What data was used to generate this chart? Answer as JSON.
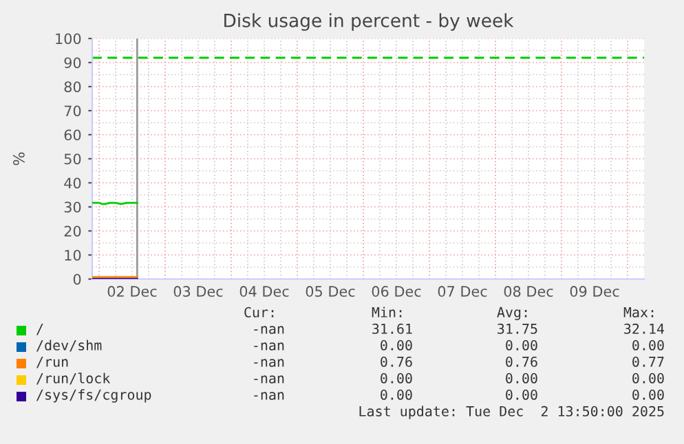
{
  "chart_data": {
    "type": "line",
    "title": "Disk usage in percent - by week",
    "ylabel": "%",
    "xlim": [
      "2025-12-01T21:30",
      "2025-12-10T06:00"
    ],
    "xticks": [
      {
        "value": "2025-12-02T12:00",
        "label": "02 Dec"
      },
      {
        "value": "2025-12-03T12:00",
        "label": "03 Dec"
      },
      {
        "value": "2025-12-04T12:00",
        "label": "04 Dec"
      },
      {
        "value": "2025-12-05T12:00",
        "label": "05 Dec"
      },
      {
        "value": "2025-12-06T12:00",
        "label": "06 Dec"
      },
      {
        "value": "2025-12-07T12:00",
        "label": "07 Dec"
      },
      {
        "value": "2025-12-08T12:00",
        "label": "08 Dec"
      },
      {
        "value": "2025-12-09T12:00",
        "label": "09 Dec"
      }
    ],
    "ylim": [
      0,
      100
    ],
    "yticks": [
      0,
      10,
      20,
      30,
      40,
      50,
      60,
      70,
      80,
      90,
      100
    ],
    "x": [
      "2025-12-01T21:30",
      "2025-12-02T00:00",
      "2025-12-02T01:00",
      "2025-12-02T02:00",
      "2025-12-02T04:00",
      "2025-12-02T06:00",
      "2025-12-02T08:00",
      "2025-12-02T10:00",
      "2025-12-02T12:00",
      "2025-12-02T13:50"
    ],
    "series": [
      {
        "name": "/",
        "color": "#00cc00",
        "values": [
          31.7,
          31.7,
          31.2,
          31.2,
          31.7,
          31.7,
          31.2,
          31.7,
          31.7,
          31.7
        ]
      },
      {
        "name": "/dev/shm",
        "color": "#0066b3",
        "values": [
          null,
          null,
          null,
          null,
          null,
          null,
          null,
          null,
          null,
          null
        ]
      },
      {
        "name": "/run",
        "color": "#ff8000",
        "values": [
          0.8,
          0.8,
          0.8,
          0.8,
          0.8,
          0.8,
          0.8,
          0.8,
          0.8,
          0.8
        ]
      },
      {
        "name": "/run/lock",
        "color": "#ffcc00",
        "values": [
          null,
          null,
          null,
          null,
          null,
          null,
          null,
          null,
          null,
          null
        ]
      },
      {
        "name": "/sys/fs/cgroup",
        "color": "#330099",
        "values": [
          0,
          0,
          0,
          0,
          0,
          0,
          0,
          0,
          0,
          0
        ]
      }
    ],
    "ref_lines": [
      {
        "axis": "y",
        "value": 92,
        "color": "#00cc00",
        "line_style": "dashed"
      },
      {
        "axis": "x",
        "value": "2025-12-02T13:50",
        "color": "#999999",
        "line_style": "solid"
      }
    ],
    "grid": true,
    "legend": "bottom",
    "marker": "none",
    "line_style": "solid",
    "annotations": [
      "Cur:",
      "Min:",
      "Avg:",
      "Max:",
      "-nan",
      "31.61",
      "31.75",
      "32.14",
      "-nan",
      "0.00",
      "0.00",
      "0.00",
      "-nan",
      "0.76",
      "0.76",
      "0.77",
      "-nan",
      "0.00",
      "0.00",
      "0.00",
      "-nan",
      "0.00",
      "0.00",
      "0.00",
      "Last update: Tue Dec  2 13:50:00 2025"
    ]
  }
}
